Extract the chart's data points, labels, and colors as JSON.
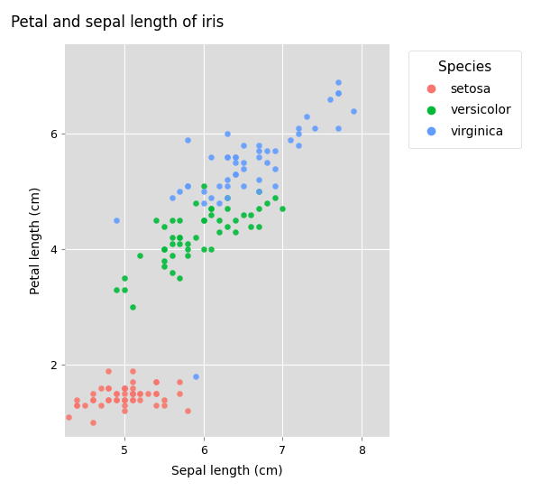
{
  "title": "Petal and sepal length of iris",
  "xlabel": "Sepal length (cm)",
  "ylabel": "Petal length (cm)",
  "legend_title": "Species",
  "species": [
    "setosa",
    "versicolor",
    "virginica"
  ],
  "colors": {
    "setosa": "#F8766D",
    "versicolor": "#00BA38",
    "virginica": "#619CFF"
  },
  "plot_bg_color": "#DCDCDC",
  "fig_bg_color": "#FFFFFF",
  "grid_color": "#FFFFFF",
  "xlim": [
    4.25,
    8.35
  ],
  "ylim": [
    0.75,
    7.55
  ],
  "xticks": [
    5,
    6,
    7,
    8
  ],
  "yticks": [
    2,
    4,
    6
  ],
  "setosa_sepal": [
    5.1,
    4.9,
    4.7,
    4.6,
    5.0,
    5.4,
    4.6,
    5.0,
    4.4,
    4.9,
    5.4,
    4.8,
    4.8,
    4.3,
    5.8,
    5.7,
    5.4,
    5.1,
    5.7,
    5.1,
    5.4,
    5.1,
    4.6,
    5.1,
    4.8,
    5.0,
    5.0,
    5.2,
    5.2,
    4.7,
    4.8,
    5.4,
    5.2,
    5.5,
    4.9,
    5.0,
    5.5,
    4.9,
    4.4,
    5.1,
    5.0,
    4.5,
    4.4,
    5.0,
    5.1,
    4.8,
    5.1,
    4.6,
    5.3,
    5.0
  ],
  "setosa_petal": [
    1.4,
    1.4,
    1.3,
    1.5,
    1.4,
    1.7,
    1.4,
    1.5,
    1.4,
    1.5,
    1.5,
    1.6,
    1.4,
    1.1,
    1.2,
    1.5,
    1.3,
    1.4,
    1.7,
    1.5,
    1.7,
    1.5,
    1.0,
    1.7,
    1.9,
    1.6,
    1.6,
    1.5,
    1.4,
    1.6,
    1.6,
    1.5,
    1.5,
    1.4,
    1.5,
    1.2,
    1.3,
    1.4,
    1.3,
    1.5,
    1.3,
    1.3,
    1.3,
    1.6,
    1.9,
    1.4,
    1.6,
    1.4,
    1.5,
    1.4
  ],
  "versicolor_sepal": [
    7.0,
    6.4,
    6.9,
    5.5,
    6.5,
    5.7,
    6.3,
    4.9,
    6.6,
    5.2,
    5.0,
    5.9,
    6.0,
    6.1,
    5.6,
    6.7,
    5.6,
    5.8,
    6.2,
    5.6,
    5.9,
    6.1,
    6.3,
    6.1,
    6.4,
    6.6,
    6.8,
    6.7,
    6.0,
    5.7,
    5.5,
    5.5,
    5.8,
    6.0,
    5.4,
    6.0,
    6.7,
    6.3,
    5.6,
    5.5,
    5.5,
    6.1,
    5.8,
    5.0,
    5.6,
    5.7,
    5.7,
    6.2,
    5.1,
    5.7
  ],
  "versicolor_petal": [
    4.7,
    4.5,
    4.9,
    4.0,
    4.6,
    4.5,
    4.7,
    3.3,
    4.6,
    3.9,
    3.5,
    4.2,
    4.0,
    4.7,
    3.6,
    4.4,
    4.5,
    4.1,
    4.5,
    3.9,
    4.8,
    4.0,
    4.9,
    4.7,
    4.3,
    4.4,
    4.8,
    5.0,
    4.5,
    3.5,
    3.8,
    3.7,
    3.9,
    5.1,
    4.5,
    4.5,
    4.7,
    4.4,
    4.1,
    4.0,
    4.4,
    4.6,
    4.0,
    3.3,
    4.2,
    4.2,
    4.2,
    4.3,
    3.0,
    4.1
  ],
  "virginica_sepal": [
    6.3,
    5.8,
    7.1,
    6.3,
    6.5,
    7.6,
    4.9,
    7.3,
    6.7,
    7.2,
    6.5,
    6.4,
    6.8,
    5.7,
    5.8,
    6.4,
    6.5,
    7.7,
    7.7,
    6.0,
    6.9,
    5.6,
    7.7,
    6.3,
    6.7,
    7.2,
    6.2,
    6.1,
    6.4,
    7.2,
    7.4,
    7.9,
    6.4,
    6.3,
    6.1,
    7.7,
    6.3,
    6.4,
    6.0,
    6.9,
    6.7,
    6.9,
    5.8,
    6.8,
    6.7,
    6.7,
    6.3,
    6.5,
    6.2,
    5.9
  ],
  "virginica_petal": [
    6.0,
    5.1,
    5.9,
    5.6,
    5.8,
    6.6,
    4.5,
    6.3,
    5.8,
    6.1,
    5.1,
    5.3,
    5.5,
    5.0,
    5.1,
    5.3,
    5.5,
    6.7,
    6.9,
    5.0,
    5.7,
    4.9,
    6.7,
    4.9,
    5.7,
    6.0,
    4.8,
    4.9,
    5.6,
    5.8,
    6.1,
    6.4,
    5.6,
    5.1,
    5.6,
    6.1,
    5.6,
    5.5,
    4.8,
    5.4,
    5.6,
    5.1,
    5.9,
    5.7,
    5.2,
    5.0,
    5.2,
    5.4,
    5.1,
    1.8
  ],
  "marker_size": 22,
  "marker_alpha": 0.9,
  "title_fontsize": 12,
  "label_fontsize": 10,
  "tick_fontsize": 9,
  "legend_fontsize": 10,
  "legend_title_fontsize": 11
}
